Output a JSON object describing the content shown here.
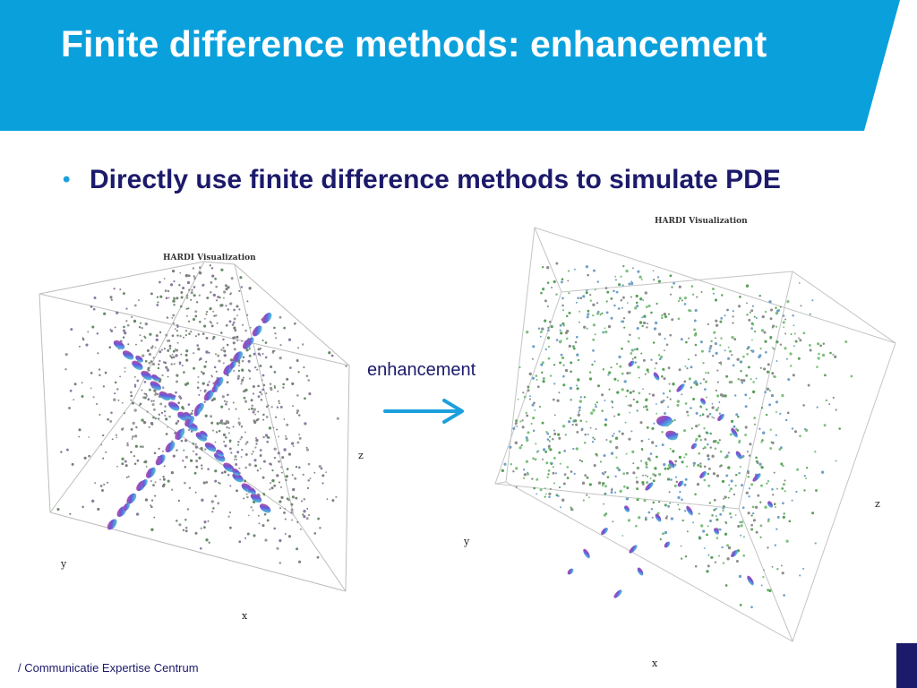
{
  "slide": {
    "title": "Finite difference methods: enhancement",
    "bullet": "Directly use finite difference methods to simulate PDE",
    "arrow_label": "enhancement",
    "footer": "/ Communicatie Expertise Centrum"
  },
  "visualizations": [
    {
      "title": "HARDI Visualization",
      "axes": {
        "x": "x",
        "y": "y",
        "z": "z"
      }
    },
    {
      "title": "HARDI Visualization",
      "axes": {
        "x": "x",
        "y": "y",
        "z": "z"
      }
    }
  ],
  "colors": {
    "header_blue": "#0aa0dc",
    "title_text": "#ffffff",
    "bullet_text": "#1c1a6b",
    "bullet_dot": "#1ca0dd",
    "arrow": "#1ca0dd",
    "corner_block": "#1c1a6b"
  }
}
